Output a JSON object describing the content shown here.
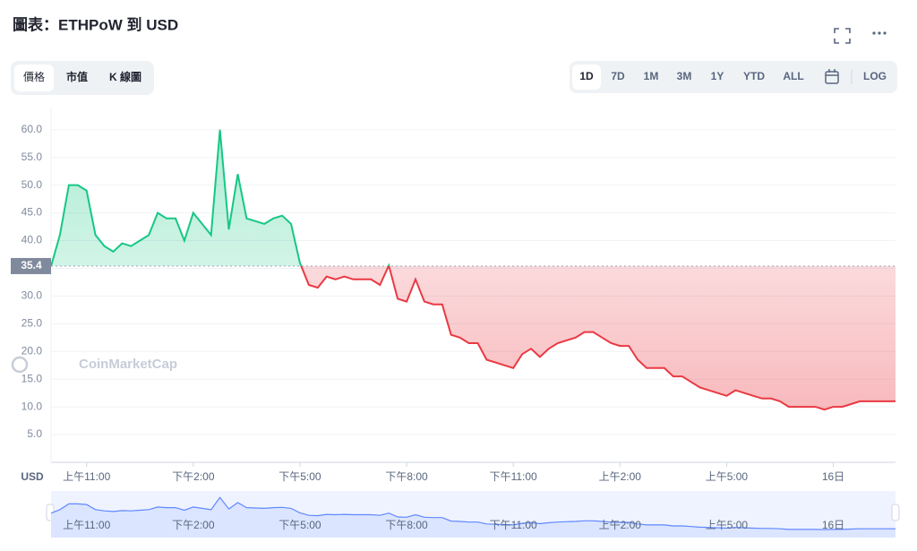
{
  "ui": {
    "title": "圖表：ETHPoW 到 USD",
    "tabs": [
      "價格",
      "市值",
      "K 線圖"
    ],
    "ranges": [
      "1D",
      "7D",
      "1M",
      "3M",
      "1Y",
      "YTD",
      "ALL"
    ],
    "log": "LOG",
    "watermark": "CoinMarketCap"
  },
  "chart_data": {
    "type": "line",
    "y_label": "USD",
    "categories": [
      null,
      null,
      null,
      null,
      "上午11:00",
      null,
      null,
      null,
      null,
      null,
      null,
      null,
      null,
      null,
      null,
      null,
      "下午2:00",
      null,
      null,
      null,
      null,
      null,
      null,
      null,
      null,
      null,
      null,
      null,
      "下午5:00",
      null,
      null,
      null,
      null,
      null,
      null,
      null,
      null,
      null,
      null,
      null,
      "下午8:00",
      null,
      null,
      null,
      null,
      null,
      null,
      null,
      null,
      null,
      null,
      null,
      "下午11:00",
      null,
      null,
      null,
      null,
      null,
      null,
      null,
      null,
      null,
      null,
      null,
      "上午2:00",
      null,
      null,
      null,
      null,
      null,
      null,
      null,
      null,
      null,
      null,
      null,
      "上午5:00",
      null,
      null,
      null,
      null,
      null,
      null,
      null,
      null,
      null,
      null,
      null,
      "16日",
      null,
      null,
      null,
      null,
      null,
      null,
      null
    ],
    "values": [
      35.4,
      41,
      50,
      50,
      49,
      41,
      39,
      38,
      39.5,
      39,
      40,
      41,
      45,
      44,
      44,
      40,
      45,
      43,
      41,
      60,
      42,
      52,
      44,
      43.5,
      43,
      44,
      44.5,
      43,
      36,
      32,
      31.5,
      33.5,
      33,
      33.5,
      33,
      33,
      33,
      32,
      35.5,
      29.5,
      29,
      33,
      29,
      28.5,
      28.5,
      23,
      22.5,
      21.5,
      21.5,
      18.5,
      18,
      17.5,
      17,
      19.5,
      20.5,
      19,
      20.5,
      21.5,
      22,
      22.5,
      23.5,
      23.5,
      22.5,
      21.5,
      21,
      21,
      18.5,
      17,
      17,
      17,
      15.5,
      15.5,
      14.5,
      13.5,
      13,
      12.5,
      12,
      13,
      12.5,
      12,
      11.5,
      11.5,
      11,
      10,
      10,
      10,
      10,
      9.5,
      10,
      10,
      10.5,
      11,
      11,
      11,
      11,
      11
    ],
    "reference": 35.4,
    "up_color": "#16c784",
    "down_color": "#ea3943",
    "navigator_color": "#6188ff",
    "ylim": [
      0,
      64
    ],
    "yticks": [
      {
        "value": 5,
        "label": "5.0"
      },
      {
        "value": 10,
        "label": "10.0"
      },
      {
        "value": 15,
        "label": "15.0"
      },
      {
        "value": 20,
        "label": "20.0"
      },
      {
        "value": 25,
        "label": "25.0"
      },
      {
        "value": 30,
        "label": "30.0"
      },
      {
        "value": 35,
        "label": "35.0"
      },
      {
        "value": 40,
        "label": "40.0"
      },
      {
        "value": 45,
        "label": "45.0"
      },
      {
        "value": 50,
        "label": "50.0"
      },
      {
        "value": 55,
        "label": "55.0"
      },
      {
        "value": 60,
        "label": "60.0"
      }
    ],
    "grid": true
  }
}
